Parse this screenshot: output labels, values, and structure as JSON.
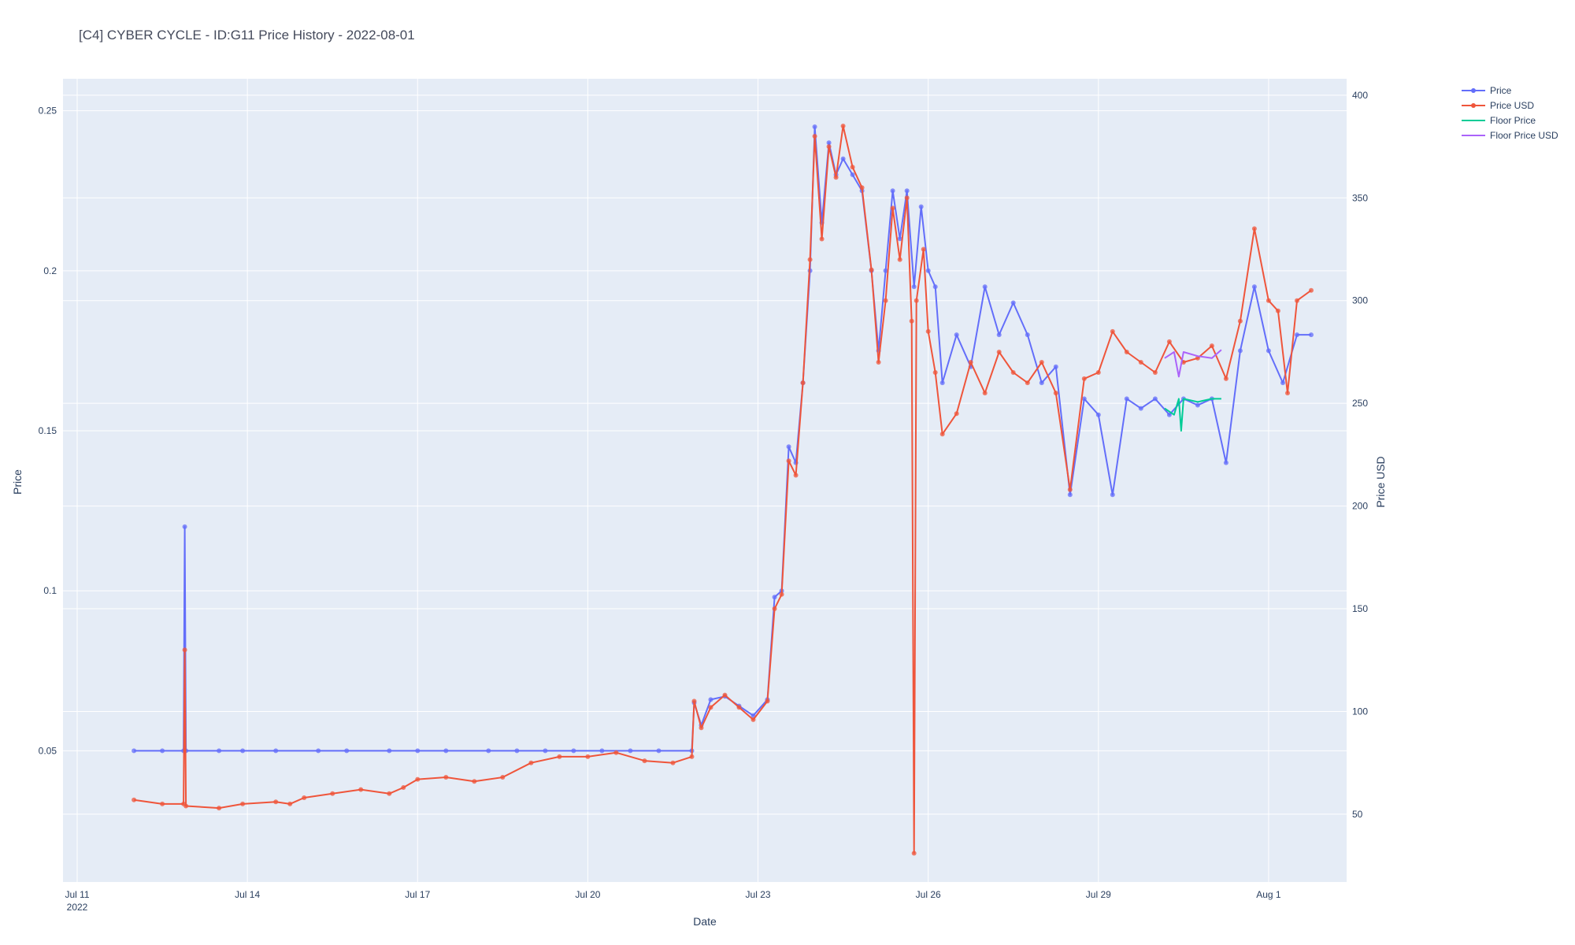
{
  "chart_data": {
    "type": "line",
    "title": "[C4] CYBER CYCLE - ID:G11 Price History - 2022-08-01",
    "xlabel": "Date",
    "ylabel": "Price",
    "y2label": "Price USD",
    "x_ticks": [
      {
        "date": "2022-07-11",
        "label": "Jul 11",
        "sublabel": "2022"
      },
      {
        "date": "2022-07-14",
        "label": "Jul 14"
      },
      {
        "date": "2022-07-17",
        "label": "Jul 17"
      },
      {
        "date": "2022-07-20",
        "label": "Jul 20"
      },
      {
        "date": "2022-07-23",
        "label": "Jul 23"
      },
      {
        "date": "2022-07-26",
        "label": "Jul 26"
      },
      {
        "date": "2022-07-29",
        "label": "Jul 29"
      },
      {
        "date": "2022-08-01",
        "label": "Aug 1"
      }
    ],
    "xlim": [
      "2022-07-10T18:00",
      "2022-08-02T09:00"
    ],
    "ylim": [
      0.009,
      0.26
    ],
    "y2lim": [
      17,
      408
    ],
    "y_ticks": [
      0.05,
      0.1,
      0.15,
      0.2,
      0.25
    ],
    "y_tick_labels": [
      "0.05",
      "0.1",
      "0.15",
      "0.2",
      "0.25"
    ],
    "y2_ticks": [
      50,
      100,
      150,
      200,
      250,
      300,
      350,
      400
    ],
    "y2_tick_labels": [
      "50",
      "100",
      "150",
      "200",
      "250",
      "300",
      "350",
      "400"
    ],
    "grid": true,
    "legend_position": "top-right",
    "series": [
      {
        "name": "Price",
        "axis": "y",
        "color": "#636efa",
        "markers": true,
        "points": [
          [
            "2022-07-12T00:00",
            0.05
          ],
          [
            "2022-07-12T12:00",
            0.05
          ],
          [
            "2022-07-12T21:00",
            0.05
          ],
          [
            "2022-07-12T21:30",
            0.12
          ],
          [
            "2022-07-12T22:00",
            0.05
          ],
          [
            "2022-07-13T12:00",
            0.05
          ],
          [
            "2022-07-13T22:00",
            0.05
          ],
          [
            "2022-07-14T12:00",
            0.05
          ],
          [
            "2022-07-15T06:00",
            0.05
          ],
          [
            "2022-07-15T18:00",
            0.05
          ],
          [
            "2022-07-16T12:00",
            0.05
          ],
          [
            "2022-07-17T00:00",
            0.05
          ],
          [
            "2022-07-17T12:00",
            0.05
          ],
          [
            "2022-07-18T06:00",
            0.05
          ],
          [
            "2022-07-18T18:00",
            0.05
          ],
          [
            "2022-07-19T06:00",
            0.05
          ],
          [
            "2022-07-19T18:00",
            0.05
          ],
          [
            "2022-07-20T06:00",
            0.05
          ],
          [
            "2022-07-20T18:00",
            0.05
          ],
          [
            "2022-07-21T06:00",
            0.05
          ],
          [
            "2022-07-21T20:00",
            0.05
          ],
          [
            "2022-07-21T21:00",
            0.065
          ],
          [
            "2022-07-22T00:00",
            0.058
          ],
          [
            "2022-07-22T04:00",
            0.066
          ],
          [
            "2022-07-22T10:00",
            0.067
          ],
          [
            "2022-07-22T16:00",
            0.064
          ],
          [
            "2022-07-22T22:00",
            0.061
          ],
          [
            "2022-07-23T04:00",
            0.066
          ],
          [
            "2022-07-23T07:00",
            0.098
          ],
          [
            "2022-07-23T10:00",
            0.1
          ],
          [
            "2022-07-23T13:00",
            0.145
          ],
          [
            "2022-07-23T16:00",
            0.14
          ],
          [
            "2022-07-23T19:00",
            0.165
          ],
          [
            "2022-07-23T22:00",
            0.2
          ],
          [
            "2022-07-24T00:00",
            0.245
          ],
          [
            "2022-07-24T03:00",
            0.215
          ],
          [
            "2022-07-24T06:00",
            0.24
          ],
          [
            "2022-07-24T09:00",
            0.23
          ],
          [
            "2022-07-24T12:00",
            0.235
          ],
          [
            "2022-07-24T16:00",
            0.23
          ],
          [
            "2022-07-24T20:00",
            0.225
          ],
          [
            "2022-07-25T00:00",
            0.2
          ],
          [
            "2022-07-25T03:00",
            0.175
          ],
          [
            "2022-07-25T06:00",
            0.2
          ],
          [
            "2022-07-25T09:00",
            0.225
          ],
          [
            "2022-07-25T12:00",
            0.21
          ],
          [
            "2022-07-25T15:00",
            0.225
          ],
          [
            "2022-07-25T18:00",
            0.195
          ],
          [
            "2022-07-25T21:00",
            0.22
          ],
          [
            "2022-07-26T00:00",
            0.2
          ],
          [
            "2022-07-26T03:00",
            0.195
          ],
          [
            "2022-07-26T06:00",
            0.165
          ],
          [
            "2022-07-26T12:00",
            0.18
          ],
          [
            "2022-07-26T18:00",
            0.17
          ],
          [
            "2022-07-27T00:00",
            0.195
          ],
          [
            "2022-07-27T06:00",
            0.18
          ],
          [
            "2022-07-27T12:00",
            0.19
          ],
          [
            "2022-07-27T18:00",
            0.18
          ],
          [
            "2022-07-28T00:00",
            0.165
          ],
          [
            "2022-07-28T06:00",
            0.17
          ],
          [
            "2022-07-28T12:00",
            0.13
          ],
          [
            "2022-07-28T18:00",
            0.16
          ],
          [
            "2022-07-29T00:00",
            0.155
          ],
          [
            "2022-07-29T06:00",
            0.13
          ],
          [
            "2022-07-29T12:00",
            0.16
          ],
          [
            "2022-07-29T18:00",
            0.157
          ],
          [
            "2022-07-30T00:00",
            0.16
          ],
          [
            "2022-07-30T06:00",
            0.155
          ],
          [
            "2022-07-30T12:00",
            0.16
          ],
          [
            "2022-07-30T18:00",
            0.158
          ],
          [
            "2022-07-31T00:00",
            0.16
          ],
          [
            "2022-07-31T06:00",
            0.14
          ],
          [
            "2022-07-31T12:00",
            0.175
          ],
          [
            "2022-07-31T18:00",
            0.195
          ],
          [
            "2022-08-01T00:00",
            0.175
          ],
          [
            "2022-08-01T06:00",
            0.165
          ],
          [
            "2022-08-01T12:00",
            0.18
          ],
          [
            "2022-08-01T18:00",
            0.18
          ]
        ]
      },
      {
        "name": "Price USD",
        "axis": "y2",
        "color": "#ef553b",
        "markers": true,
        "points": [
          [
            "2022-07-12T00:00",
            57
          ],
          [
            "2022-07-12T12:00",
            55
          ],
          [
            "2022-07-12T21:00",
            55
          ],
          [
            "2022-07-12T21:30",
            130
          ],
          [
            "2022-07-12T22:00",
            54
          ],
          [
            "2022-07-13T12:00",
            53
          ],
          [
            "2022-07-13T22:00",
            55
          ],
          [
            "2022-07-14T12:00",
            56
          ],
          [
            "2022-07-14T18:00",
            55
          ],
          [
            "2022-07-15T00:00",
            58
          ],
          [
            "2022-07-15T12:00",
            60
          ],
          [
            "2022-07-16T00:00",
            62
          ],
          [
            "2022-07-16T12:00",
            60
          ],
          [
            "2022-07-16T18:00",
            63
          ],
          [
            "2022-07-17T00:00",
            67
          ],
          [
            "2022-07-17T12:00",
            68
          ],
          [
            "2022-07-18T00:00",
            66
          ],
          [
            "2022-07-18T12:00",
            68
          ],
          [
            "2022-07-19T00:00",
            75
          ],
          [
            "2022-07-19T12:00",
            78
          ],
          [
            "2022-07-20T00:00",
            78
          ],
          [
            "2022-07-20T12:00",
            80
          ],
          [
            "2022-07-21T00:00",
            76
          ],
          [
            "2022-07-21T12:00",
            75
          ],
          [
            "2022-07-21T20:00",
            78
          ],
          [
            "2022-07-21T21:00",
            105
          ],
          [
            "2022-07-22T00:00",
            92
          ],
          [
            "2022-07-22T04:00",
            102
          ],
          [
            "2022-07-22T10:00",
            108
          ],
          [
            "2022-07-22T16:00",
            102
          ],
          [
            "2022-07-22T22:00",
            96
          ],
          [
            "2022-07-23T04:00",
            105
          ],
          [
            "2022-07-23T07:00",
            150
          ],
          [
            "2022-07-23T10:00",
            157
          ],
          [
            "2022-07-23T13:00",
            222
          ],
          [
            "2022-07-23T16:00",
            215
          ],
          [
            "2022-07-23T19:00",
            260
          ],
          [
            "2022-07-23T22:00",
            320
          ],
          [
            "2022-07-24T00:00",
            380
          ],
          [
            "2022-07-24T03:00",
            330
          ],
          [
            "2022-07-24T06:00",
            375
          ],
          [
            "2022-07-24T09:00",
            360
          ],
          [
            "2022-07-24T12:00",
            385
          ],
          [
            "2022-07-24T16:00",
            365
          ],
          [
            "2022-07-24T20:00",
            355
          ],
          [
            "2022-07-25T00:00",
            315
          ],
          [
            "2022-07-25T03:00",
            270
          ],
          [
            "2022-07-25T06:00",
            300
          ],
          [
            "2022-07-25T09:00",
            345
          ],
          [
            "2022-07-25T12:00",
            320
          ],
          [
            "2022-07-25T15:00",
            350
          ],
          [
            "2022-07-25T17:00",
            290
          ],
          [
            "2022-07-25T18:00",
            31
          ],
          [
            "2022-07-25T19:00",
            300
          ],
          [
            "2022-07-25T22:00",
            325
          ],
          [
            "2022-07-26T00:00",
            285
          ],
          [
            "2022-07-26T03:00",
            265
          ],
          [
            "2022-07-26T06:00",
            235
          ],
          [
            "2022-07-26T12:00",
            245
          ],
          [
            "2022-07-26T18:00",
            270
          ],
          [
            "2022-07-27T00:00",
            255
          ],
          [
            "2022-07-27T06:00",
            275
          ],
          [
            "2022-07-27T12:00",
            265
          ],
          [
            "2022-07-27T18:00",
            260
          ],
          [
            "2022-07-28T00:00",
            270
          ],
          [
            "2022-07-28T06:00",
            255
          ],
          [
            "2022-07-28T12:00",
            208
          ],
          [
            "2022-07-28T18:00",
            262
          ],
          [
            "2022-07-29T00:00",
            265
          ],
          [
            "2022-07-29T06:00",
            285
          ],
          [
            "2022-07-29T12:00",
            275
          ],
          [
            "2022-07-29T18:00",
            270
          ],
          [
            "2022-07-30T00:00",
            265
          ],
          [
            "2022-07-30T06:00",
            280
          ],
          [
            "2022-07-30T12:00",
            270
          ],
          [
            "2022-07-30T18:00",
            272
          ],
          [
            "2022-07-31T00:00",
            278
          ],
          [
            "2022-07-31T06:00",
            262
          ],
          [
            "2022-07-31T12:00",
            290
          ],
          [
            "2022-07-31T18:00",
            335
          ],
          [
            "2022-08-01T00:00",
            300
          ],
          [
            "2022-08-01T04:00",
            295
          ],
          [
            "2022-08-01T08:00",
            255
          ],
          [
            "2022-08-01T12:00",
            300
          ],
          [
            "2022-08-01T18:00",
            305
          ]
        ]
      },
      {
        "name": "Floor Price",
        "axis": "y",
        "color": "#00cc96",
        "markers": false,
        "points": [
          [
            "2022-07-30T04:00",
            0.157
          ],
          [
            "2022-07-30T08:00",
            0.155
          ],
          [
            "2022-07-30T10:00",
            0.16
          ],
          [
            "2022-07-30T11:00",
            0.15
          ],
          [
            "2022-07-30T12:00",
            0.16
          ],
          [
            "2022-07-30T18:00",
            0.159
          ],
          [
            "2022-07-31T00:00",
            0.16
          ],
          [
            "2022-07-31T04:00",
            0.16
          ]
        ]
      },
      {
        "name": "Floor Price USD",
        "axis": "y2",
        "color": "#ab63fa",
        "markers": false,
        "points": [
          [
            "2022-07-30T04:00",
            272
          ],
          [
            "2022-07-30T08:00",
            275
          ],
          [
            "2022-07-30T10:00",
            263
          ],
          [
            "2022-07-30T12:00",
            275
          ],
          [
            "2022-07-30T18:00",
            273
          ],
          [
            "2022-07-31T00:00",
            272
          ],
          [
            "2022-07-31T04:00",
            276
          ]
        ]
      }
    ]
  }
}
